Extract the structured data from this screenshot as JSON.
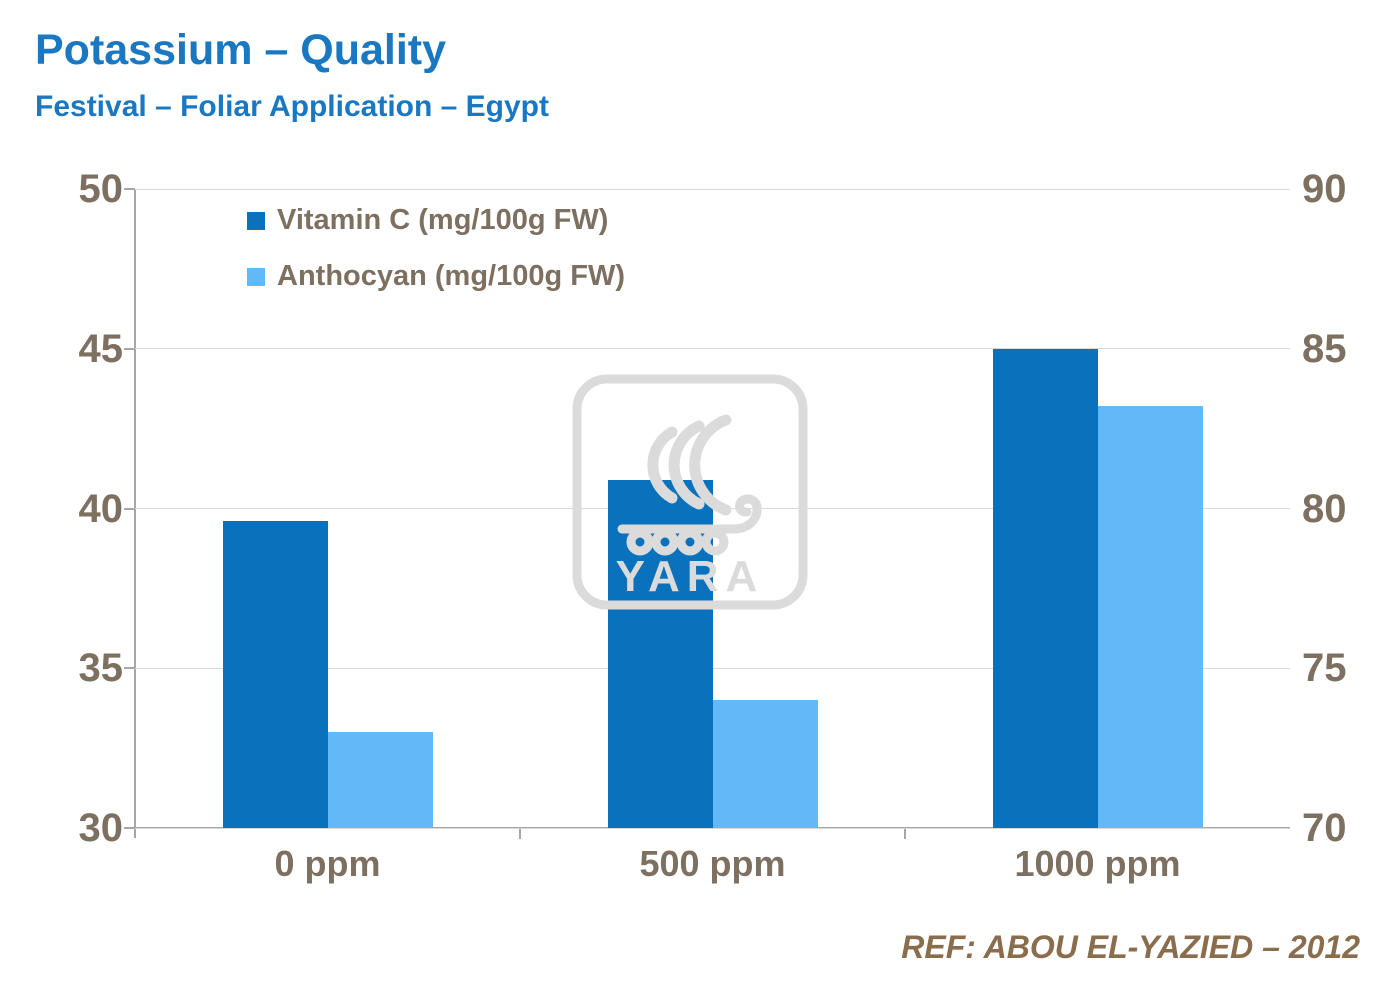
{
  "header": {
    "title": "Potassium – Quality",
    "subtitle": "Festival – Foliar Application – Egypt"
  },
  "footer": {
    "reference": "REF: ABOU EL-YAZIED – 2012"
  },
  "watermark": {
    "text": "YARA"
  },
  "colors": {
    "title_blue": "#1A78C2",
    "axis_text": "#7E7060",
    "ref_text": "#8A6D4C",
    "gridline": "#D9D9D9",
    "axis_line": "#A6A6A6",
    "watermark": "#DBDBDB"
  },
  "chart_data": {
    "type": "bar",
    "categories": [
      "0 ppm",
      "500 ppm",
      "1000 ppm"
    ],
    "series": [
      {
        "name": "Vitamin C (mg/100g FW)",
        "axis": "left",
        "color": "#0A71BC",
        "values": [
          39.6,
          40.9,
          45.0
        ]
      },
      {
        "name": "Anthocyan (mg/100g FW)",
        "axis": "right",
        "color": "#63B9F7",
        "values": [
          73.0,
          74.0,
          83.2
        ]
      }
    ],
    "left_axis": {
      "min": 30,
      "max": 50,
      "ticks": [
        50,
        45,
        40,
        35,
        30
      ]
    },
    "right_axis": {
      "min": 70,
      "max": 90,
      "ticks": [
        90,
        85,
        80,
        75,
        70
      ]
    },
    "grid": true,
    "legend_position": "top-left-inside"
  }
}
